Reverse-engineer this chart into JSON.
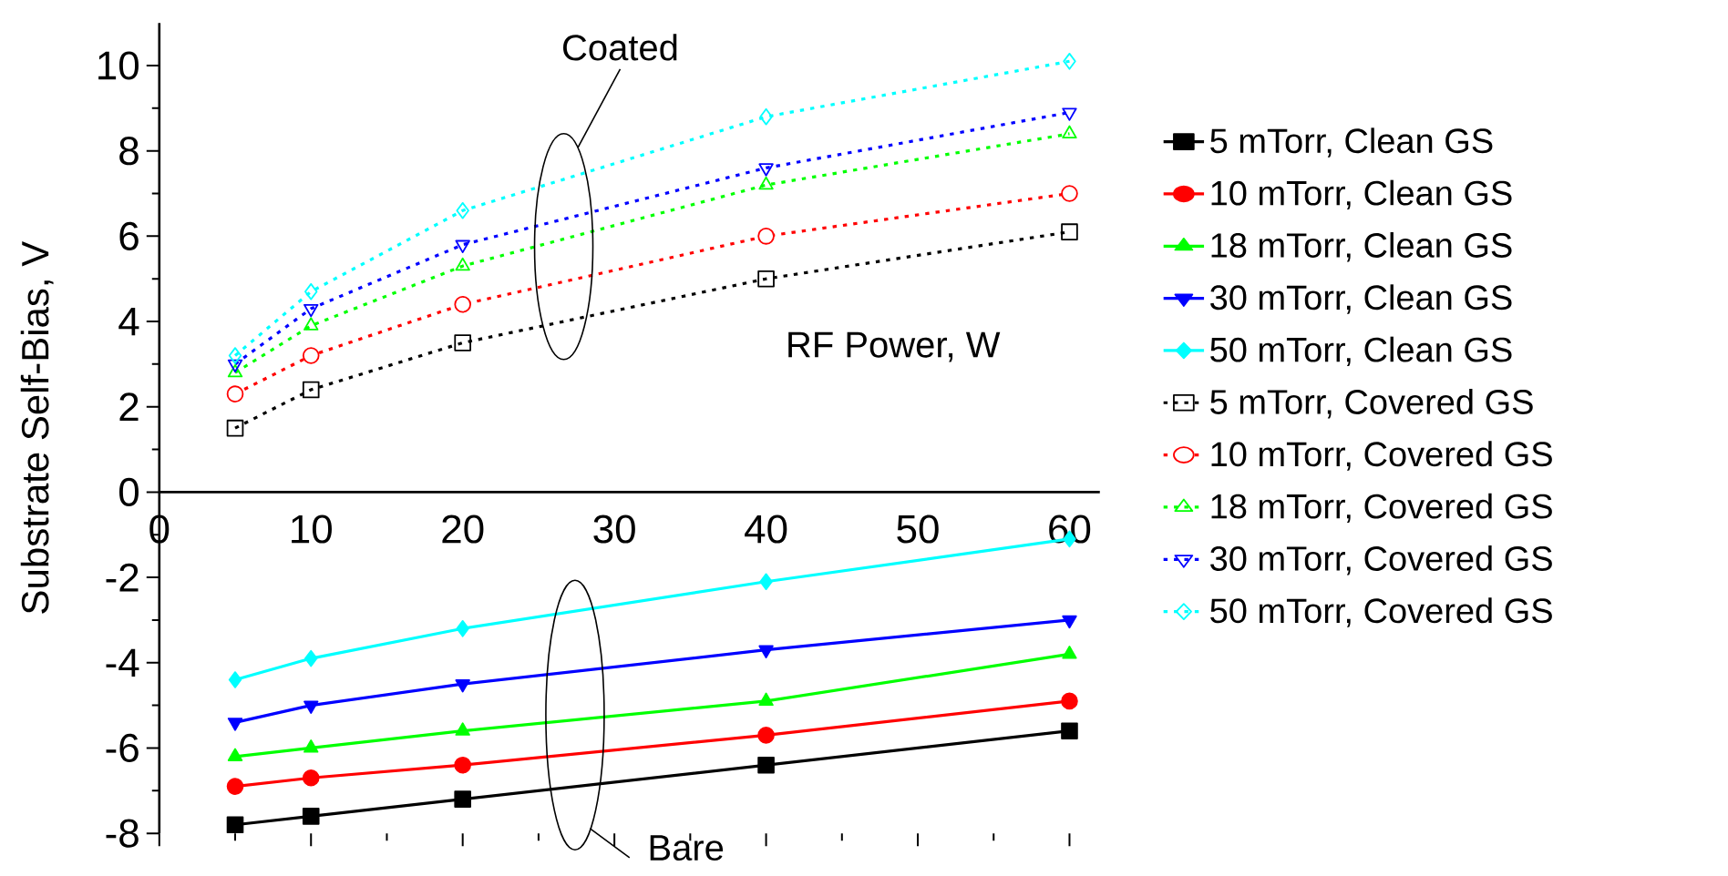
{
  "chart_data": {
    "type": "line",
    "xlabel": "RF Power, W",
    "ylabel": "Substrate Self-Bias, V",
    "x": [
      5,
      10,
      20,
      40,
      60
    ],
    "xlim": [
      0,
      62
    ],
    "ylim": [
      -8,
      11
    ],
    "xticks": [
      0,
      10,
      20,
      30,
      40,
      50,
      60
    ],
    "yticks": [
      -8,
      -6,
      -4,
      -2,
      0,
      2,
      4,
      6,
      8,
      10
    ],
    "grid": false,
    "legend": "right",
    "annotations": [
      "Coated",
      "Bare"
    ],
    "series": [
      {
        "name": "5 mTorr, Clean GS",
        "color": "#000000",
        "marker": "square",
        "line_style": "solid",
        "values": [
          -7.8,
          -7.6,
          -7.2,
          -6.4,
          -5.6
        ]
      },
      {
        "name": "10 mTorr, Clean GS",
        "color": "#ff0000",
        "marker": "circle",
        "line_style": "solid",
        "values": [
          -6.9,
          -6.7,
          -6.4,
          -5.7,
          -4.9
        ]
      },
      {
        "name": "18 mTorr, Clean GS",
        "color": "#00ff00",
        "marker": "triangle",
        "line_style": "solid",
        "values": [
          -6.2,
          -6.0,
          -5.6,
          -4.9,
          -3.8
        ]
      },
      {
        "name": "30 mTorr, Clean GS",
        "color": "#0000ff",
        "marker": "triangle-down",
        "line_style": "solid",
        "values": [
          -5.4,
          -5.0,
          -4.5,
          -3.7,
          -3.0
        ]
      },
      {
        "name": "50 mTorr, Clean GS",
        "color": "#00ffff",
        "marker": "diamond",
        "line_style": "solid",
        "values": [
          -4.4,
          -3.9,
          -3.2,
          -2.1,
          -1.1
        ]
      },
      {
        "name": "5 mTorr, Covered GS",
        "color": "#000000",
        "marker": "square",
        "line_style": "dotted",
        "values": [
          1.5,
          2.4,
          3.5,
          5.0,
          6.1
        ]
      },
      {
        "name": "10 mTorr, Covered GS",
        "color": "#ff0000",
        "marker": "circle",
        "line_style": "dotted",
        "values": [
          2.3,
          3.2,
          4.4,
          6.0,
          7.0
        ]
      },
      {
        "name": "18 mTorr, Covered GS",
        "color": "#00ff00",
        "marker": "triangle",
        "line_style": "dotted",
        "values": [
          2.8,
          3.9,
          5.3,
          7.2,
          8.4
        ]
      },
      {
        "name": "30 mTorr, Covered GS",
        "color": "#0000ff",
        "marker": "triangle-down",
        "line_style": "dotted",
        "values": [
          3.0,
          4.3,
          5.8,
          7.6,
          8.9
        ]
      },
      {
        "name": "50 mTorr, Covered GS",
        "color": "#00ffff",
        "marker": "diamond",
        "line_style": "dotted",
        "values": [
          3.2,
          4.7,
          6.6,
          8.8,
          10.1
        ]
      }
    ]
  }
}
